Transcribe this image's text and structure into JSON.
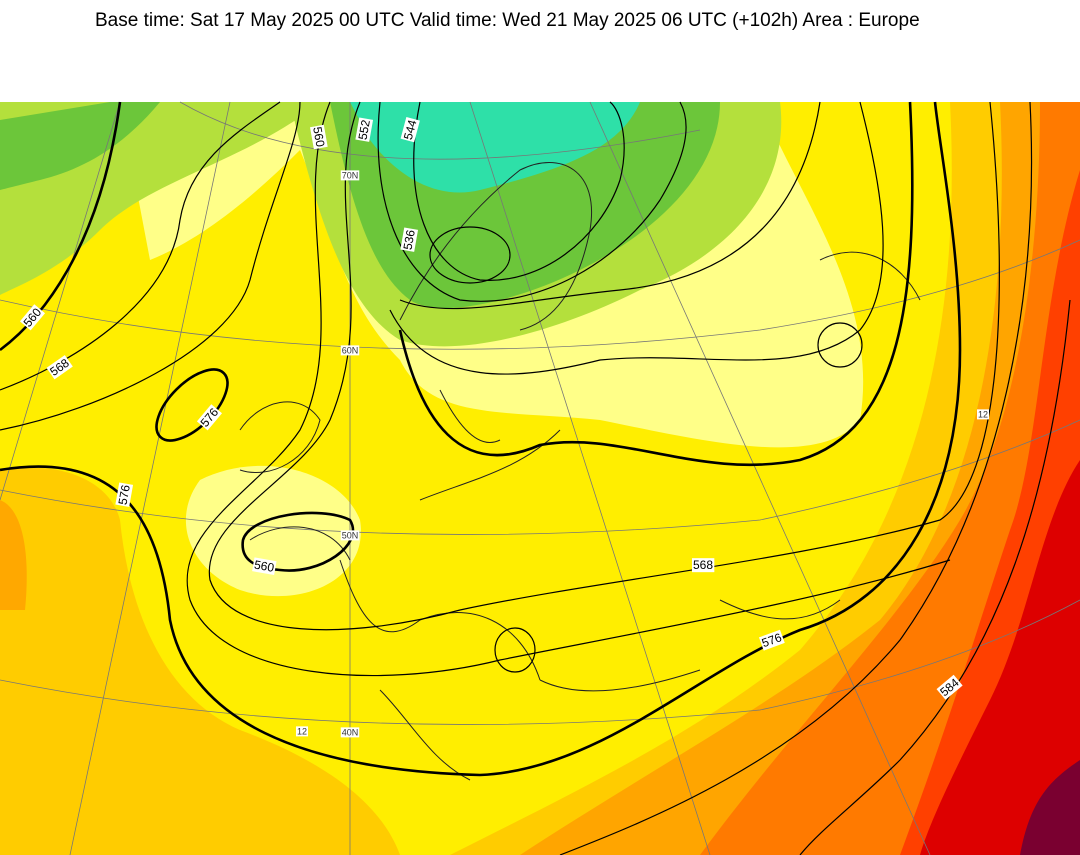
{
  "header": {
    "title": "Base time: Sat 17 May 2025 00 UTC Valid time: Wed 21 May 2025 06 UTC (+102h) Area : Europe"
  },
  "contour_labels": [
    "560",
    "552",
    "544",
    "536",
    "560",
    "568",
    "576",
    "576",
    "560",
    "568",
    "576",
    "584"
  ],
  "grid_labels": [
    "70N",
    "60N",
    "50N",
    "40N",
    "12",
    "12"
  ]
}
